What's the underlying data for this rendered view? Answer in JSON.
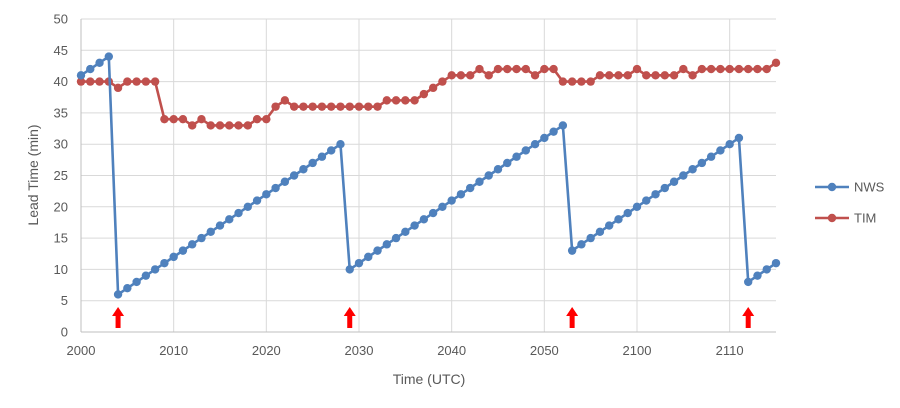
{
  "chart_data": {
    "type": "line",
    "title": "",
    "xlabel": "Time (UTC)",
    "ylabel": "Lead Time (min)",
    "x_ticks": [
      {
        "label": "2000",
        "index": 0
      },
      {
        "label": "2010",
        "index": 10
      },
      {
        "label": "2020",
        "index": 20
      },
      {
        "label": "2030",
        "index": 30
      },
      {
        "label": "2040",
        "index": 40
      },
      {
        "label": "2050",
        "index": 50
      },
      {
        "label": "2100",
        "index": 60
      },
      {
        "label": "2110",
        "index": 70
      }
    ],
    "x_count": 76,
    "ylim": [
      0,
      50
    ],
    "y_ticks": [
      0,
      5,
      10,
      15,
      20,
      25,
      30,
      35,
      40,
      45,
      50
    ],
    "grid": true,
    "legend_position": "right",
    "series": [
      {
        "name": "NWS",
        "color": "#4F81BD",
        "values": [
          41,
          42,
          43,
          44,
          6,
          7,
          8,
          9,
          10,
          11,
          12,
          13,
          14,
          15,
          16,
          17,
          18,
          19,
          20,
          21,
          22,
          23,
          24,
          25,
          26,
          27,
          28,
          29,
          30,
          10,
          11,
          12,
          13,
          14,
          15,
          16,
          17,
          18,
          19,
          20,
          21,
          22,
          23,
          24,
          25,
          26,
          27,
          28,
          29,
          30,
          31,
          32,
          33,
          13,
          14,
          15,
          16,
          17,
          18,
          19,
          20,
          21,
          22,
          23,
          24,
          25,
          26,
          27,
          28,
          29,
          30,
          31,
          8,
          9,
          10,
          11
        ]
      },
      {
        "name": "TIM",
        "color": "#C0504D",
        "values": [
          40,
          40,
          40,
          40,
          39,
          40,
          40,
          40,
          40,
          34,
          34,
          34,
          33,
          34,
          33,
          33,
          33,
          33,
          33,
          34,
          34,
          36,
          37,
          36,
          36,
          36,
          36,
          36,
          36,
          36,
          36,
          36,
          36,
          37,
          37,
          37,
          37,
          38,
          39,
          40,
          41,
          41,
          41,
          42,
          41,
          42,
          42,
          42,
          42,
          41,
          42,
          42,
          40,
          40,
          40,
          40,
          41,
          41,
          41,
          41,
          42,
          41,
          41,
          41,
          41,
          42,
          41,
          42,
          42,
          42,
          42,
          42,
          42,
          42,
          42,
          43
        ]
      }
    ],
    "annotations": {
      "arrow_color": "#FF0000",
      "arrows_at_index": [
        4,
        29,
        53,
        72
      ]
    }
  }
}
